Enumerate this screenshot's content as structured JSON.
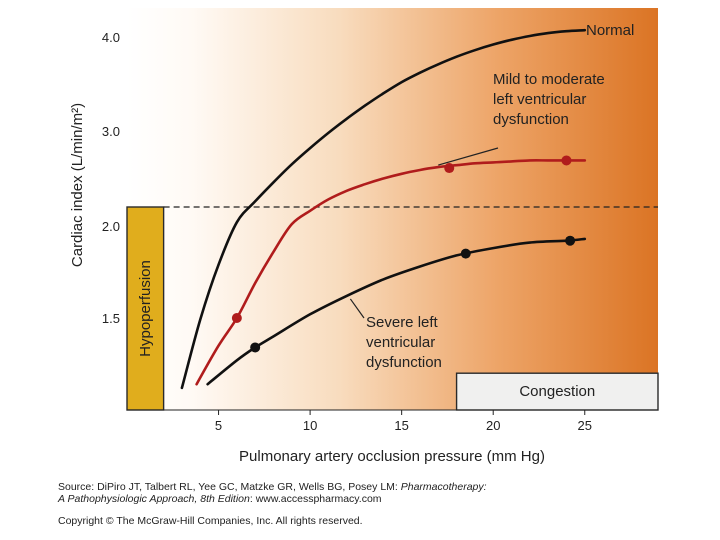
{
  "chart_data": {
    "type": "line",
    "xlabel": "Pulmonary artery occlusion pressure (mm Hg)",
    "ylabel": "Cardiac index (L/min/m²)",
    "xlim": [
      0,
      29
    ],
    "ylim": [
      1.0,
      4.3
    ],
    "x_ticks": [
      5,
      10,
      15,
      20,
      25
    ],
    "y_ticks": [
      1.5,
      2.0,
      3.0,
      4.0
    ],
    "y_tick_labels": [
      "1.5",
      "2.0",
      "3.0",
      "4.0"
    ],
    "threshold": {
      "y": 2.2,
      "style": "dashed"
    },
    "regions": [
      {
        "name": "Hypoperfusion",
        "x_range": [
          0,
          2
        ],
        "y_range": [
          1.0,
          2.2
        ]
      },
      {
        "name": "Congestion",
        "x_range": [
          18,
          29
        ],
        "y_range": [
          1.0,
          1.2
        ]
      }
    ],
    "series": [
      {
        "name": "Normal",
        "color": "#111111",
        "x": [
          3.0,
          4,
          5,
          6,
          7,
          8,
          9,
          10,
          11,
          12,
          13,
          14,
          15,
          16,
          17,
          18,
          19,
          20,
          21,
          22,
          23,
          24,
          25
        ],
        "y": [
          1.12,
          1.49,
          1.79,
          2.04,
          2.26,
          2.46,
          2.65,
          2.82,
          2.98,
          3.13,
          3.27,
          3.4,
          3.52,
          3.62,
          3.71,
          3.79,
          3.86,
          3.92,
          3.97,
          4.01,
          4.04,
          4.06,
          4.07
        ],
        "markers": [],
        "label": "Normal"
      },
      {
        "name": "Mild to moderate left ventricular dysfunction",
        "color": "#b01c1c",
        "x": [
          3.8,
          5,
          6,
          7,
          8,
          9,
          10,
          11,
          12,
          13,
          14,
          15,
          16,
          17,
          18,
          19,
          20,
          21,
          22,
          23,
          24,
          25
        ],
        "y": [
          1.14,
          1.35,
          1.5,
          1.69,
          1.86,
          2.02,
          2.16,
          2.28,
          2.37,
          2.44,
          2.5,
          2.55,
          2.59,
          2.62,
          2.64,
          2.66,
          2.67,
          2.68,
          2.69,
          2.69,
          2.69,
          2.69
        ],
        "markers": [
          [
            6.0,
            1.5
          ],
          [
            17.6,
            2.61
          ],
          [
            24.0,
            2.69
          ]
        ],
        "label": [
          "Mild to moderate",
          "left ventricular",
          "dysfunction"
        ]
      },
      {
        "name": "Severe left ventricular dysfunction",
        "color": "#111111",
        "x": [
          4.4,
          6,
          7,
          8,
          10,
          12,
          14,
          16,
          18,
          20,
          22,
          24,
          25
        ],
        "y": [
          1.14,
          1.27,
          1.34,
          1.4,
          1.52,
          1.62,
          1.71,
          1.78,
          1.84,
          1.88,
          1.91,
          1.92,
          1.93
        ],
        "markers": [
          [
            7.0,
            1.34
          ],
          [
            18.5,
            1.85
          ],
          [
            24.2,
            1.92
          ]
        ],
        "label": [
          "Severe left",
          "ventricular",
          "dysfunction"
        ]
      }
    ]
  },
  "footer": {
    "source_prefix": "Source: DiPiro JT, Talbert RL, Yee GC, Matzke GR, Wells BG, Posey LM: ",
    "source_book": "Pharmacotherapy:",
    "source_line2_italic": "A Pathophysiologic Approach, 8th Edition",
    "source_line2_rest": ": www.accesspharmacy.com",
    "copyright": "Copyright © The McGraw-Hill Companies, Inc. All rights reserved."
  }
}
